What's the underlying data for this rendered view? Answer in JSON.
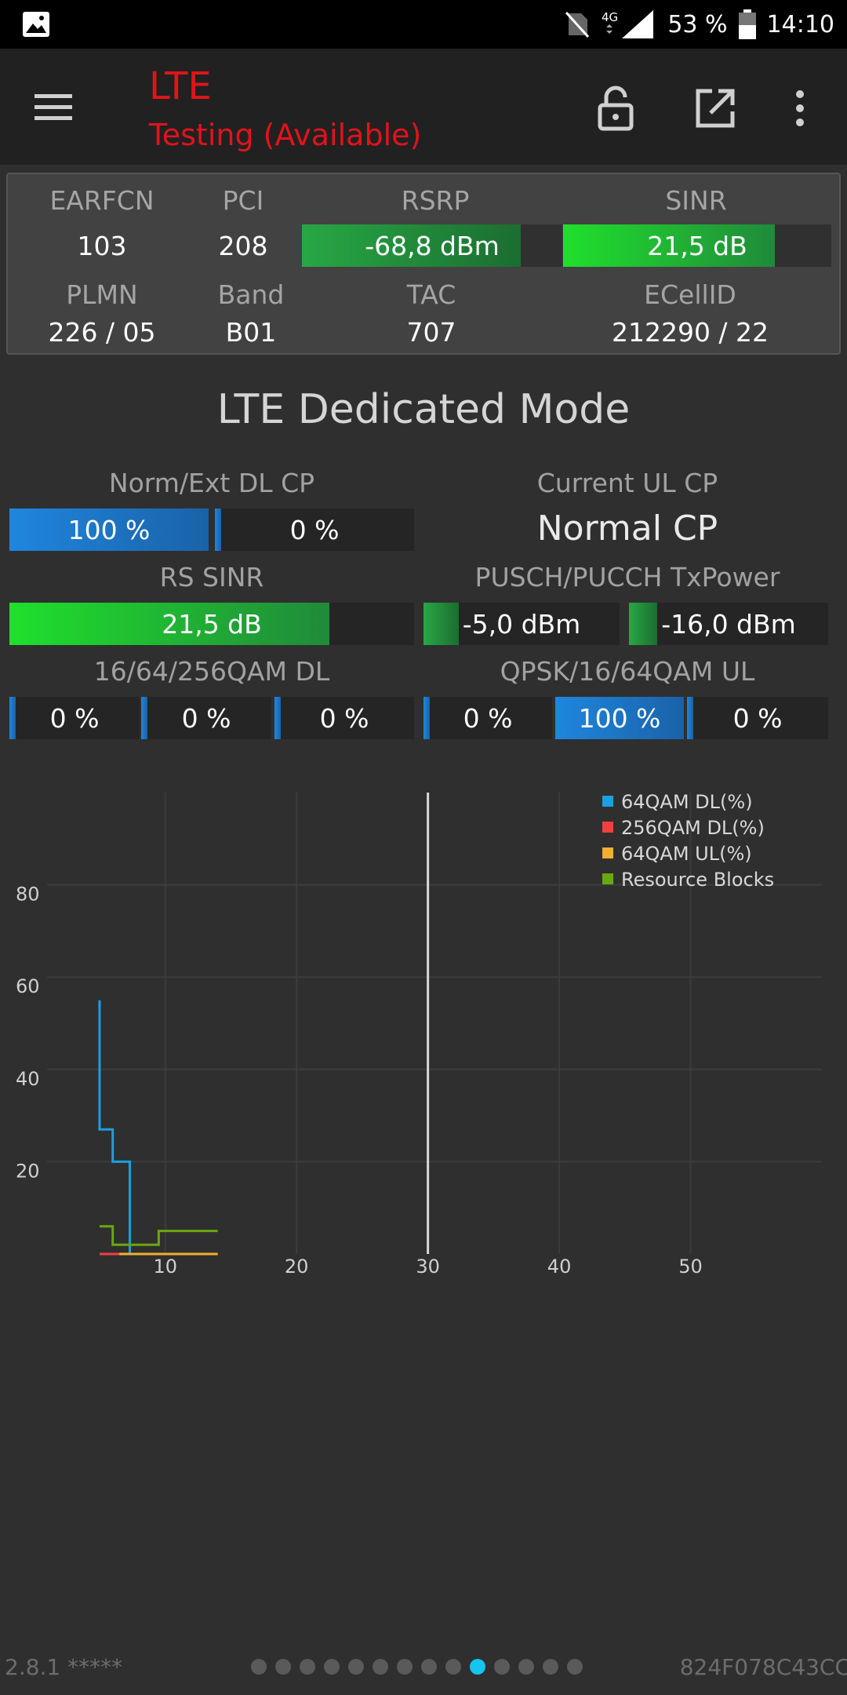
{
  "status_bar": {
    "network": "4G",
    "battery": "53 %",
    "time": "14:10"
  },
  "toolbar": {
    "title": "LTE",
    "subtitle": "Testing (Available)"
  },
  "info_panel": {
    "earfcn_label": "EARFCN",
    "earfcn": "103",
    "pci_label": "PCI",
    "pci": "208",
    "rsrp_label": "RSRP",
    "rsrp": "-68,8 dBm",
    "rsrp_level": 0.84,
    "sinr_label": "SINR",
    "sinr": "21,5 dB",
    "sinr_level": 0.79,
    "plmn_label": "PLMN",
    "plmn": "226 / 05",
    "band_label": "Band",
    "band": "B01",
    "tac_label": "TAC",
    "tac": "707",
    "ecellid_label": "ECellID",
    "ecellid": "212290 / 22"
  },
  "section": {
    "title": "LTE Dedicated Mode",
    "norm_ext_label": "Norm/Ext DL CP",
    "norm_value": "100 %",
    "norm_level": 1.0,
    "ext_value": "0 %",
    "ext_level": 0.0,
    "current_ul_cp_label": "Current UL CP",
    "current_ul_cp": "Normal CP",
    "rs_sinr_label": "RS SINR",
    "rs_sinr": "21,5 dB",
    "rs_sinr_level": 0.79,
    "tx_power_label": "PUSCH/PUCCH TxPower",
    "pusch_power": "-5,0 dBm",
    "pusch_level": 0.18,
    "pucch_power": "-16,0 dBm",
    "pucch_level": 0.14,
    "qam_dl_label": "16/64/256QAM DL",
    "qam_dl": [
      "0 %",
      "0 %",
      "0 %"
    ],
    "qam_ul_label": "QPSK/16/64QAM UL",
    "qam_ul": [
      "0 %",
      "100 %",
      "0 %"
    ],
    "qam_ul_levels": [
      0,
      1,
      0
    ]
  },
  "chart_data": {
    "type": "line",
    "x_ticks": [
      "10",
      "20",
      "30",
      "40",
      "50"
    ],
    "y_ticks": [
      "20",
      "40",
      "60",
      "80"
    ],
    "xlim": [
      1,
      60
    ],
    "ylim": [
      0,
      100
    ],
    "grid": true,
    "legend_position": "top-right",
    "cursor_x": 30,
    "series": [
      {
        "name": "64QAM DL(%)",
        "color": "#1aa0e0",
        "points": [
          [
            5,
            55
          ],
          [
            5,
            27
          ],
          [
            6,
            27
          ],
          [
            6,
            20
          ],
          [
            7.3,
            20
          ],
          [
            7.3,
            0
          ]
        ]
      },
      {
        "name": "256QAM DL(%)",
        "color": "#f04040",
        "points": [
          [
            5,
            0
          ],
          [
            9.5,
            0
          ]
        ]
      },
      {
        "name": "64QAM UL(%)",
        "color": "#f0b030",
        "points": [
          [
            6.5,
            0
          ],
          [
            7.5,
            0
          ],
          [
            13,
            0
          ],
          [
            14,
            0
          ]
        ]
      },
      {
        "name": "Resource Blocks",
        "color": "#6aa810",
        "points": [
          [
            5,
            6
          ],
          [
            6,
            6
          ],
          [
            6,
            2
          ],
          [
            9.5,
            2
          ],
          [
            9.5,
            5
          ],
          [
            14,
            5
          ]
        ]
      }
    ]
  },
  "footer": {
    "version": "2.8.1 *****",
    "device_id": "824F078C43CC",
    "page_count": 14,
    "active_page": 10
  }
}
